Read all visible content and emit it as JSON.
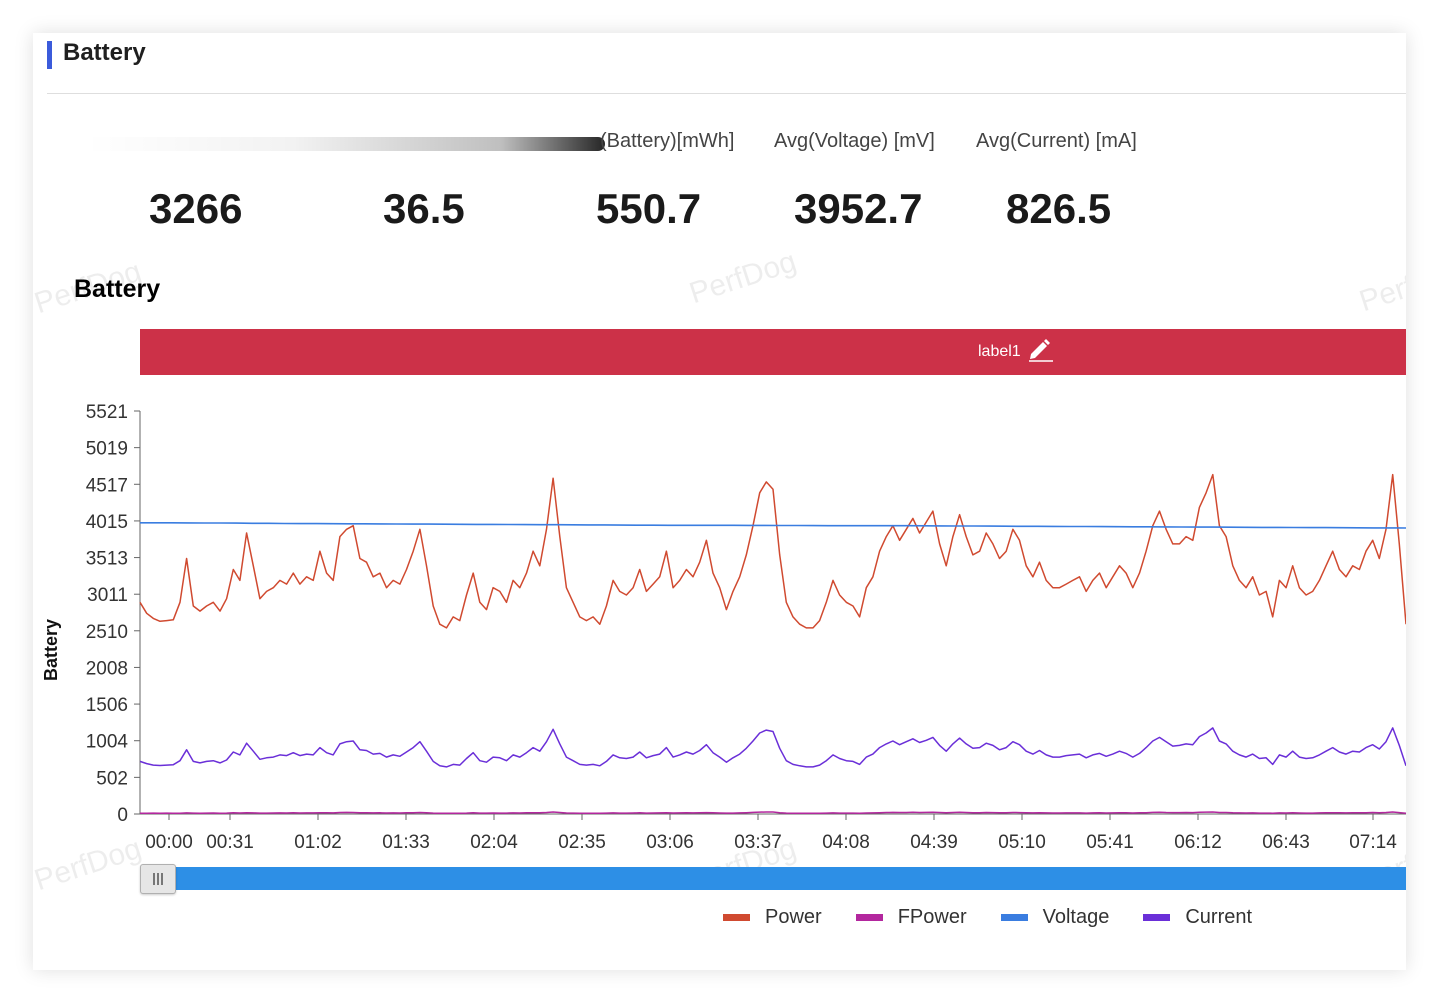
{
  "section": {
    "title": "Battery"
  },
  "stats": [
    {
      "label": "",
      "value": "3266"
    },
    {
      "label": "",
      "value": "36.5"
    },
    {
      "label": "(Battery)[mWh]",
      "value": "550.7"
    },
    {
      "label": "Avg(Voltage) [mV]",
      "value": "3952.7"
    },
    {
      "label": "Avg(Current) [mA]",
      "value": "826.5"
    }
  ],
  "watermark": "PerfDog",
  "label_band": {
    "text": "label1",
    "icon": "pencil-icon",
    "color": "#cc3148"
  },
  "colors": {
    "accent": "#3b5bdb",
    "slider": "#2d8fe6"
  },
  "chart_data": {
    "type": "line",
    "title": "Battery",
    "xlabel": "",
    "ylabel": "Battery",
    "x_tick_labels": [
      "00:00",
      "00:31",
      "01:02",
      "01:33",
      "02:04",
      "02:35",
      "03:06",
      "03:37",
      "04:08",
      "04:39",
      "05:10",
      "05:41",
      "06:12",
      "06:43",
      "07:14"
    ],
    "y_tick_labels": [
      "0",
      "502",
      "1004",
      "1506",
      "2008",
      "2510",
      "3011",
      "3513",
      "4015",
      "4517",
      "5019",
      "5521"
    ],
    "ylim": [
      0,
      5521
    ],
    "legend_position": "bottom",
    "series": [
      {
        "name": "Power",
        "color": "#d04a30",
        "values": [
          2900,
          2750,
          2680,
          2640,
          2650,
          2660,
          2900,
          3500,
          2850,
          2780,
          2850,
          2900,
          2780,
          2950,
          3350,
          3200,
          3850,
          3400,
          2950,
          3050,
          3100,
          3200,
          3150,
          3300,
          3150,
          3250,
          3200,
          3600,
          3300,
          3200,
          3800,
          3900,
          3950,
          3500,
          3450,
          3250,
          3300,
          3100,
          3200,
          3150,
          3350,
          3600,
          3900,
          3400,
          2850,
          2600,
          2550,
          2700,
          2650,
          3000,
          3300,
          2900,
          2800,
          3100,
          3050,
          2900,
          3200,
          3100,
          3300,
          3600,
          3400,
          3900,
          4600,
          3800,
          3100,
          2900,
          2700,
          2650,
          2700,
          2600,
          2850,
          3200,
          3050,
          3000,
          3100,
          3350,
          3050,
          3150,
          3250,
          3600,
          3100,
          3200,
          3350,
          3250,
          3450,
          3750,
          3300,
          3100,
          2800,
          3050,
          3250,
          3550,
          3950,
          4400,
          4550,
          4450,
          3550,
          2900,
          2700,
          2600,
          2550,
          2550,
          2650,
          2900,
          3200,
          3000,
          2900,
          2850,
          2700,
          3100,
          3250,
          3600,
          3800,
          3950,
          3750,
          3900,
          4050,
          3850,
          4000,
          4150,
          3700,
          3400,
          3800,
          4100,
          3800,
          3550,
          3600,
          3850,
          3700,
          3500,
          3600,
          3900,
          3750,
          3400,
          3250,
          3450,
          3200,
          3100,
          3100,
          3150,
          3200,
          3250,
          3050,
          3200,
          3300,
          3100,
          3250,
          3400,
          3300,
          3100,
          3300,
          3600,
          3950,
          4150,
          3900,
          3700,
          3700,
          3800,
          3750,
          4200,
          4400,
          4650,
          3950,
          3800,
          3400,
          3200,
          3100,
          3250,
          3000,
          3050,
          2700,
          3200,
          3100,
          3400,
          3100,
          3000,
          3050,
          3200,
          3400,
          3600,
          3350,
          3250,
          3400,
          3350,
          3600,
          3750,
          3500,
          3900,
          4650,
          3700,
          2600
        ]
      },
      {
        "name": "FPower",
        "color": "#b3279e",
        "values": [
          10,
          10,
          12,
          11,
          12,
          10,
          11,
          15,
          12,
          11,
          12,
          14,
          11,
          12,
          16,
          14,
          18,
          15,
          12,
          13,
          14,
          15,
          14,
          16,
          14,
          15,
          15,
          18,
          16,
          15,
          20,
          22,
          20,
          17,
          16,
          15,
          16,
          14,
          15,
          14,
          16,
          18,
          20,
          16,
          12,
          11,
          10,
          11,
          11,
          13,
          16,
          13,
          12,
          14,
          13,
          12,
          15,
          14,
          16,
          18,
          16,
          20,
          28,
          20,
          14,
          12,
          11,
          11,
          11,
          10,
          12,
          15,
          13,
          13,
          14,
          16,
          13,
          14,
          15,
          18,
          14,
          15,
          16,
          15,
          17,
          19,
          16,
          14,
          12,
          13,
          15,
          18,
          22,
          26,
          28,
          27,
          18,
          12,
          11,
          10,
          10,
          10,
          11,
          12,
          15,
          13,
          12,
          12,
          11,
          14,
          15,
          18,
          20,
          22,
          20,
          21,
          23,
          21,
          22,
          24,
          20,
          17,
          20,
          23,
          20,
          18,
          18,
          21,
          19,
          17,
          18,
          21,
          19,
          16,
          15,
          17,
          15,
          14,
          14,
          15,
          15,
          15,
          13,
          15,
          16,
          14,
          15,
          17,
          16,
          14,
          16,
          18,
          22,
          24,
          21,
          19,
          19,
          20,
          19,
          24,
          26,
          28,
          21,
          20,
          16,
          15,
          14,
          15,
          13,
          13,
          11,
          15,
          14,
          16,
          14,
          13,
          13,
          15,
          17,
          18,
          16,
          15,
          16,
          16,
          18,
          20,
          17,
          21,
          28,
          19,
          11
        ]
      },
      {
        "name": "Voltage",
        "color": "#3a7de0",
        "values": [
          3990,
          3990,
          3989,
          3988,
          3987,
          3986,
          3985,
          3983,
          3982,
          3980,
          3979,
          3978,
          3977,
          3976,
          3975,
          3974,
          3973,
          3972,
          3971,
          3970,
          3969,
          3968,
          3967,
          3966,
          3965,
          3964,
          3963,
          3962,
          3961,
          3960,
          3958,
          3957,
          3956,
          3955,
          3955,
          3955,
          3955,
          3955,
          3954,
          3954,
          3953,
          3952,
          3951,
          3950,
          3950,
          3950,
          3950,
          3950,
          3949,
          3948,
          3947,
          3946,
          3945,
          3944,
          3943,
          3942,
          3941,
          3940,
          3939,
          3938,
          3937,
          3936,
          3935,
          3934,
          3933,
          3932,
          3931,
          3930,
          3929,
          3928,
          3927,
          3926,
          3925,
          3924,
          3923,
          3922,
          3921,
          3920,
          3919,
          3918
        ]
      },
      {
        "name": "Current",
        "color": "#6a2fd8",
        "values": [
          720,
          690,
          670,
          665,
          670,
          675,
          730,
          880,
          720,
          700,
          720,
          730,
          700,
          740,
          850,
          810,
          970,
          860,
          750,
          770,
          780,
          810,
          800,
          840,
          800,
          820,
          810,
          910,
          840,
          810,
          960,
          990,
          1000,
          880,
          870,
          820,
          830,
          780,
          810,
          790,
          850,
          910,
          990,
          860,
          720,
          660,
          645,
          680,
          670,
          760,
          840,
          730,
          710,
          780,
          770,
          730,
          810,
          780,
          840,
          910,
          860,
          990,
          1160,
          960,
          780,
          730,
          680,
          670,
          680,
          660,
          720,
          810,
          770,
          760,
          780,
          850,
          770,
          800,
          820,
          910,
          780,
          810,
          850,
          820,
          870,
          950,
          840,
          780,
          710,
          770,
          820,
          900,
          1000,
          1110,
          1150,
          1130,
          900,
          730,
          680,
          660,
          645,
          645,
          670,
          730,
          810,
          760,
          730,
          720,
          680,
          780,
          820,
          910,
          960,
          1000,
          950,
          990,
          1030,
          980,
          1010,
          1050,
          940,
          860,
          960,
          1040,
          960,
          900,
          910,
          970,
          940,
          880,
          910,
          990,
          950,
          860,
          820,
          870,
          810,
          780,
          780,
          800,
          810,
          820,
          770,
          810,
          830,
          790,
          820,
          860,
          830,
          780,
          830,
          910,
          1000,
          1050,
          990,
          930,
          940,
          960,
          950,
          1060,
          1110,
          1180,
          1000,
          960,
          860,
          810,
          780,
          820,
          760,
          770,
          680,
          810,
          780,
          860,
          780,
          760,
          770,
          810,
          860,
          910,
          850,
          820,
          860,
          850,
          910,
          950,
          890,
          990,
          1180,
          940,
          660
        ]
      }
    ]
  }
}
